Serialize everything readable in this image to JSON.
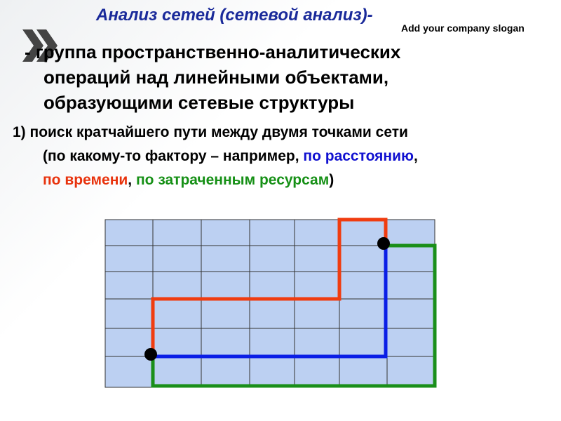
{
  "header": {
    "title": "Анализ сетей (сетевой анализ)-",
    "slogan": "Add your company slogan"
  },
  "definition": {
    "lines": [
      "- группа пространственно-аналитических",
      "операций над линейными объектами,",
      "образующими сетевые структуры"
    ]
  },
  "item": {
    "line1": "1) поиск кратчайшего пути между двумя точками сети",
    "line2": [
      "(по какому-то фактору – например, ",
      "по расстоянию",
      ","
    ],
    "line3": [
      "по времени",
      ", ",
      "по затраченным ресурсам",
      ")"
    ]
  }
}
